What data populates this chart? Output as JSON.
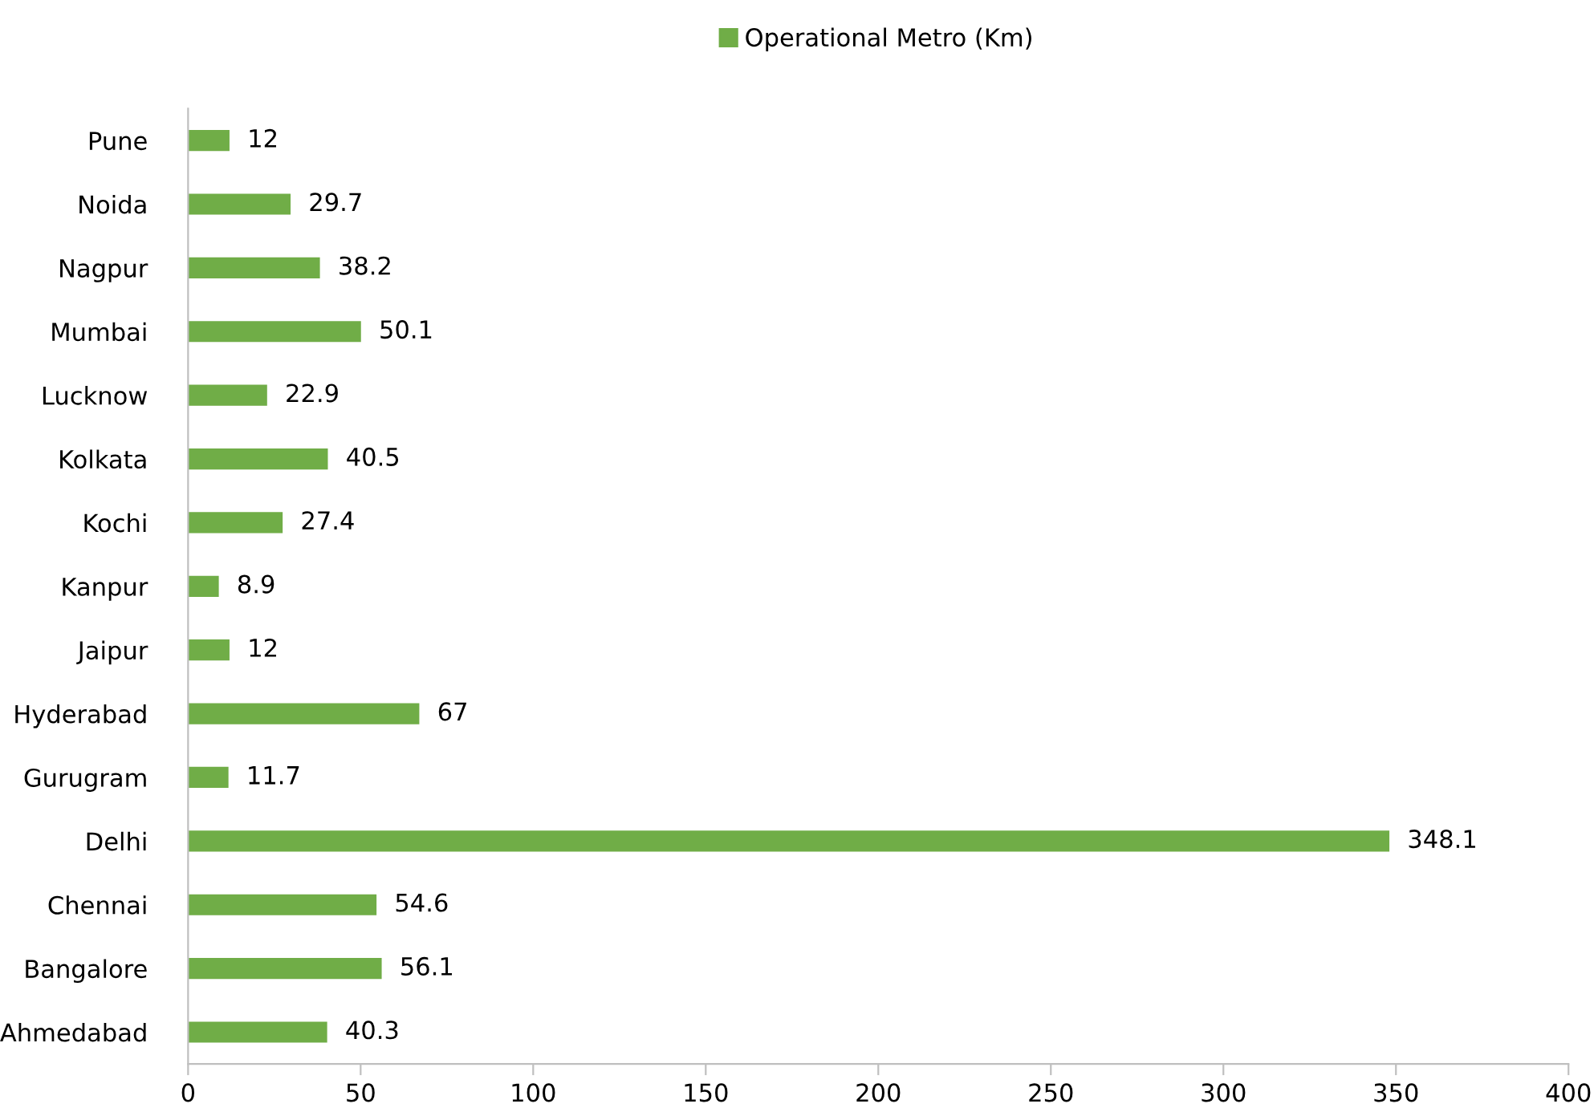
{
  "chart_data": {
    "type": "bar",
    "orientation": "horizontal",
    "categories": [
      "Pune",
      "Noida",
      "Nagpur",
      "Mumbai",
      "Lucknow",
      "Kolkata",
      "Kochi",
      "Kanpur",
      "Jaipur",
      "Hyderabad",
      "Gurugram",
      "Delhi",
      "Chennai",
      "Bangalore",
      "Ahmedabad"
    ],
    "series": [
      {
        "name": "Operational Metro (Km)",
        "color": "#70ad47",
        "values": [
          12,
          29.7,
          38.2,
          50.1,
          22.9,
          40.5,
          27.4,
          8.9,
          12,
          67,
          11.7,
          348.1,
          54.6,
          56.1,
          40.3
        ]
      }
    ],
    "xlim": [
      0,
      400
    ],
    "xticks": [
      0,
      50,
      100,
      150,
      200,
      250,
      300,
      350,
      400
    ],
    "data_labels": true,
    "legend": "top",
    "grid": false
  }
}
